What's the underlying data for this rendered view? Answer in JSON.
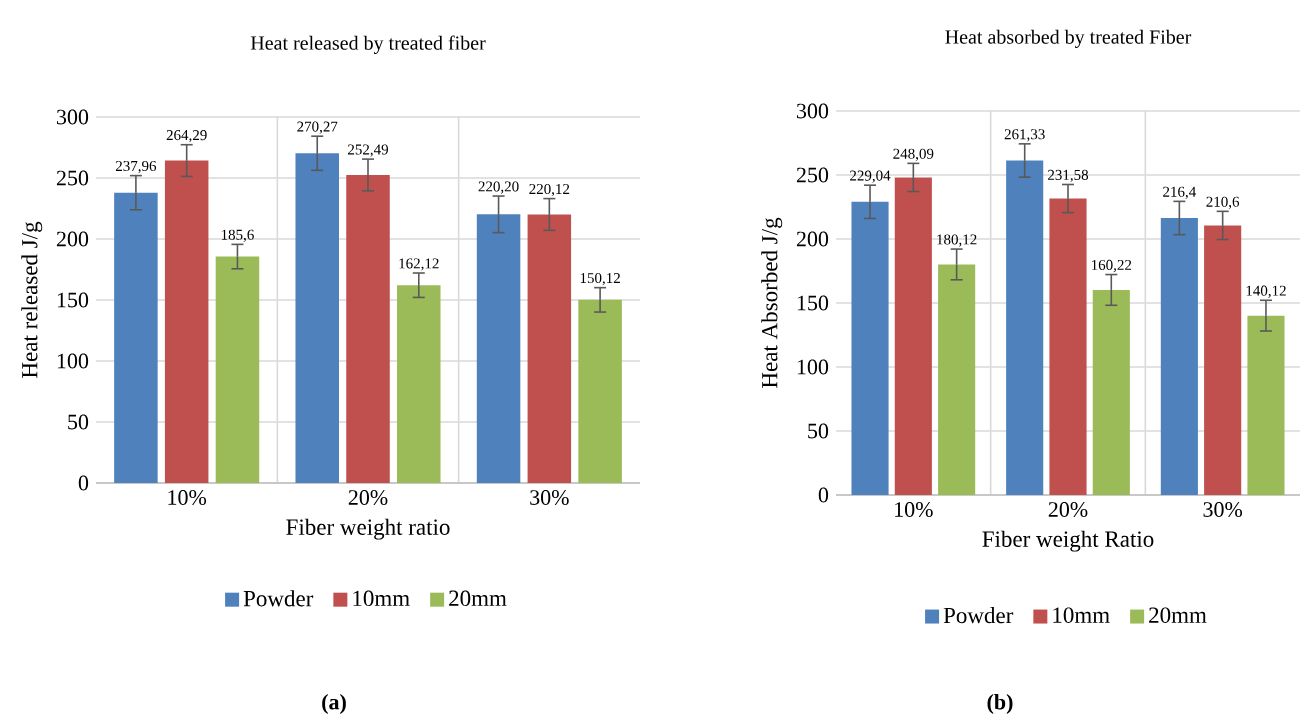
{
  "chart_data": [
    {
      "type": "bar",
      "title": "Heat released by treated fiber",
      "xlabel": "Fiber weight ratio",
      "ylabel": "Heat released J/g",
      "categories": [
        "10%",
        "20%",
        "30%"
      ],
      "series": [
        {
          "name": "Powder",
          "color": "#4f81bd",
          "values": [
            237.96,
            270.27,
            220.2
          ],
          "errors": [
            14,
            14,
            15
          ],
          "value_labels": [
            "237,96",
            "270,27",
            "220,20"
          ]
        },
        {
          "name": "10mm",
          "color": "#c0504d",
          "values": [
            264.29,
            252.49,
            220.12
          ],
          "errors": [
            13,
            13,
            13
          ],
          "value_labels": [
            "264,29",
            "252,49",
            "220,12"
          ]
        },
        {
          "name": "20mm",
          "color": "#9bbb59",
          "values": [
            185.6,
            162.12,
            150.12
          ],
          "errors": [
            10,
            10,
            10
          ],
          "value_labels": [
            "185,6",
            "162,12",
            "150,12"
          ]
        }
      ],
      "ylim": [
        0,
        300
      ],
      "yticks": [
        0,
        50,
        100,
        150,
        200,
        250,
        300
      ],
      "grid": true,
      "legend": "bottom",
      "annotations": [
        "(a)"
      ]
    },
    {
      "type": "bar",
      "title": "Heat absorbed by treated Fiber",
      "xlabel": "Fiber weight Ratio",
      "ylabel": "Heat Absorbed J/g",
      "categories": [
        "10%",
        "20%",
        "30%"
      ],
      "series": [
        {
          "name": "Powder",
          "color": "#4f81bd",
          "values": [
            229.04,
            261.33,
            216.4
          ],
          "errors": [
            13,
            13,
            13
          ],
          "value_labels": [
            "229,04",
            "261,33",
            "216,4"
          ]
        },
        {
          "name": "10mm",
          "color": "#c0504d",
          "values": [
            248.09,
            231.58,
            210.6
          ],
          "errors": [
            11,
            11,
            11
          ],
          "value_labels": [
            "248,09",
            "231,58",
            "210,6"
          ]
        },
        {
          "name": "20mm",
          "color": "#9bbb59",
          "values": [
            180.12,
            160.22,
            140.12
          ],
          "errors": [
            12,
            12,
            12
          ],
          "value_labels": [
            "180,12",
            "160,22",
            "140,12"
          ]
        }
      ],
      "ylim": [
        0,
        300
      ],
      "yticks": [
        0,
        50,
        100,
        150,
        200,
        250,
        300
      ],
      "grid": true,
      "legend": "bottom",
      "annotations": [
        "(b)"
      ]
    }
  ]
}
